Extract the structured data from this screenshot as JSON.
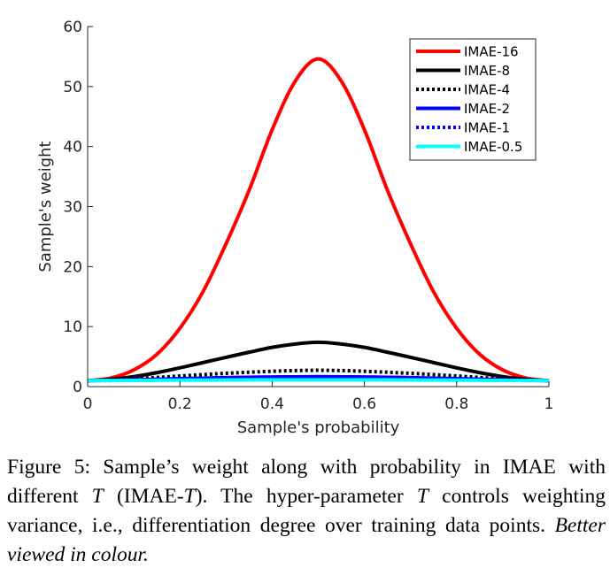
{
  "chart_data": {
    "type": "line",
    "xlabel": "Sample's probability",
    "ylabel": "Sample's weight",
    "xlim": [
      0,
      1
    ],
    "ylim": [
      0,
      60
    ],
    "xticks": [
      0,
      0.2,
      0.4,
      0.6,
      0.8,
      1
    ],
    "yticks": [
      0,
      10,
      20,
      30,
      40,
      50,
      60
    ],
    "xtick_labels": [
      "0",
      "0.2",
      "0.4",
      "0.6",
      "0.8",
      "1"
    ],
    "ytick_labels": [
      "0",
      "10",
      "20",
      "30",
      "40",
      "50",
      "60"
    ],
    "grid": false,
    "legend_position": "top-right",
    "x": [
      0,
      0.05,
      0.1,
      0.15,
      0.2,
      0.25,
      0.3,
      0.35,
      0.4,
      0.45,
      0.5,
      0.55,
      0.6,
      0.65,
      0.7,
      0.75,
      0.8,
      0.85,
      0.9,
      0.95,
      1
    ],
    "series": [
      {
        "name": "IMAE-16",
        "color": "#ff0000",
        "dash": "solid",
        "values": [
          1.0,
          1.43,
          2.77,
          5.38,
          9.72,
          15.8,
          23.8,
          32.7,
          42.8,
          50.9,
          54.6,
          50.9,
          42.8,
          32.7,
          23.8,
          15.8,
          9.72,
          5.38,
          2.77,
          1.43,
          1.0
        ]
      },
      {
        "name": "IMAE-8",
        "color": "#000000",
        "dash": "solid",
        "values": [
          1.0,
          1.2,
          1.66,
          2.32,
          3.12,
          4.0,
          4.88,
          5.73,
          6.54,
          7.1,
          7.39,
          7.1,
          6.54,
          5.73,
          4.88,
          4.0,
          3.12,
          2.32,
          1.66,
          1.2,
          1.0
        ]
      },
      {
        "name": "IMAE-4",
        "color": "#000000",
        "dash": "dotted",
        "values": [
          1.0,
          1.1,
          1.29,
          1.52,
          1.77,
          2.0,
          2.21,
          2.39,
          2.56,
          2.67,
          2.72,
          2.67,
          2.56,
          2.39,
          2.21,
          2.0,
          1.77,
          1.52,
          1.29,
          1.1,
          1.0
        ]
      },
      {
        "name": "IMAE-2",
        "color": "#0000ff",
        "dash": "solid",
        "values": [
          1.0,
          1.05,
          1.14,
          1.23,
          1.33,
          1.41,
          1.49,
          1.55,
          1.6,
          1.63,
          1.65,
          1.63,
          1.6,
          1.55,
          1.49,
          1.41,
          1.33,
          1.23,
          1.14,
          1.05,
          1.0
        ]
      },
      {
        "name": "IMAE-1",
        "color": "#0000ff",
        "dash": "dotted",
        "values": [
          1.0,
          1.02,
          1.07,
          1.11,
          1.15,
          1.19,
          1.22,
          1.24,
          1.26,
          1.28,
          1.28,
          1.28,
          1.26,
          1.24,
          1.22,
          1.19,
          1.15,
          1.11,
          1.07,
          1.02,
          1.0
        ]
      },
      {
        "name": "IMAE-0.5",
        "color": "#00ffff",
        "dash": "solid",
        "values": [
          1.0,
          1.01,
          1.03,
          1.05,
          1.07,
          1.09,
          1.1,
          1.12,
          1.13,
          1.13,
          1.13,
          1.13,
          1.13,
          1.12,
          1.1,
          1.09,
          1.07,
          1.05,
          1.03,
          1.01,
          1.0
        ]
      }
    ]
  },
  "caption": {
    "prefix": "Figure 5: Sample’s weight along with probability in IMAE with different",
    "var1": "T",
    "mid1": "(IMAE-",
    "var2": "T",
    "mid2": "). The hyper-parameter",
    "var3": "T",
    "suffix": "controls weighting variance, i.e., differentiation degree over training data points.",
    "emphasis": "Better viewed in colour."
  }
}
